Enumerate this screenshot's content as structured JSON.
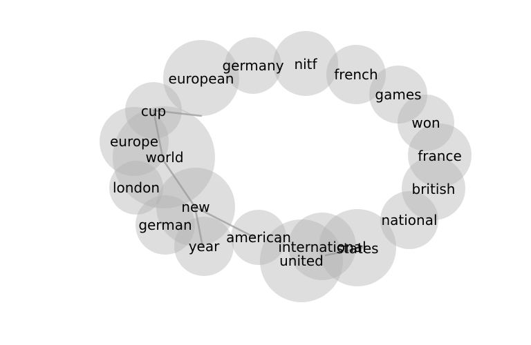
{
  "diagram": {
    "type": "word-cooccurrence-bubble-graph",
    "colors": {
      "node_fill": "#b0b0b0",
      "edge": "#9a9a9a",
      "label": "#000000",
      "background": "#ffffff"
    },
    "nodes": [
      {
        "id": "european",
        "label": "european"
      },
      {
        "id": "germany",
        "label": "germany"
      },
      {
        "id": "nitf",
        "label": "nitf"
      },
      {
        "id": "french",
        "label": "french"
      },
      {
        "id": "games",
        "label": "games"
      },
      {
        "id": "won",
        "label": "won"
      },
      {
        "id": "france",
        "label": "france"
      },
      {
        "id": "british",
        "label": "british"
      },
      {
        "id": "national",
        "label": "national"
      },
      {
        "id": "states",
        "label": "states"
      },
      {
        "id": "international",
        "label": "international"
      },
      {
        "id": "united",
        "label": "united"
      },
      {
        "id": "american",
        "label": "american"
      },
      {
        "id": "year",
        "label": "year"
      },
      {
        "id": "german",
        "label": "german"
      },
      {
        "id": "new",
        "label": "new"
      },
      {
        "id": "london",
        "label": "london"
      },
      {
        "id": "world",
        "label": "world"
      },
      {
        "id": "europe",
        "label": "europe"
      },
      {
        "id": "cup",
        "label": "cup"
      }
    ],
    "edges": [
      {
        "source": "cup",
        "target": "european"
      },
      {
        "source": "cup",
        "target": "world"
      },
      {
        "source": "world",
        "target": "new"
      },
      {
        "source": "new",
        "target": "year"
      },
      {
        "source": "new",
        "target": "american"
      },
      {
        "source": "united",
        "target": "states"
      }
    ]
  }
}
